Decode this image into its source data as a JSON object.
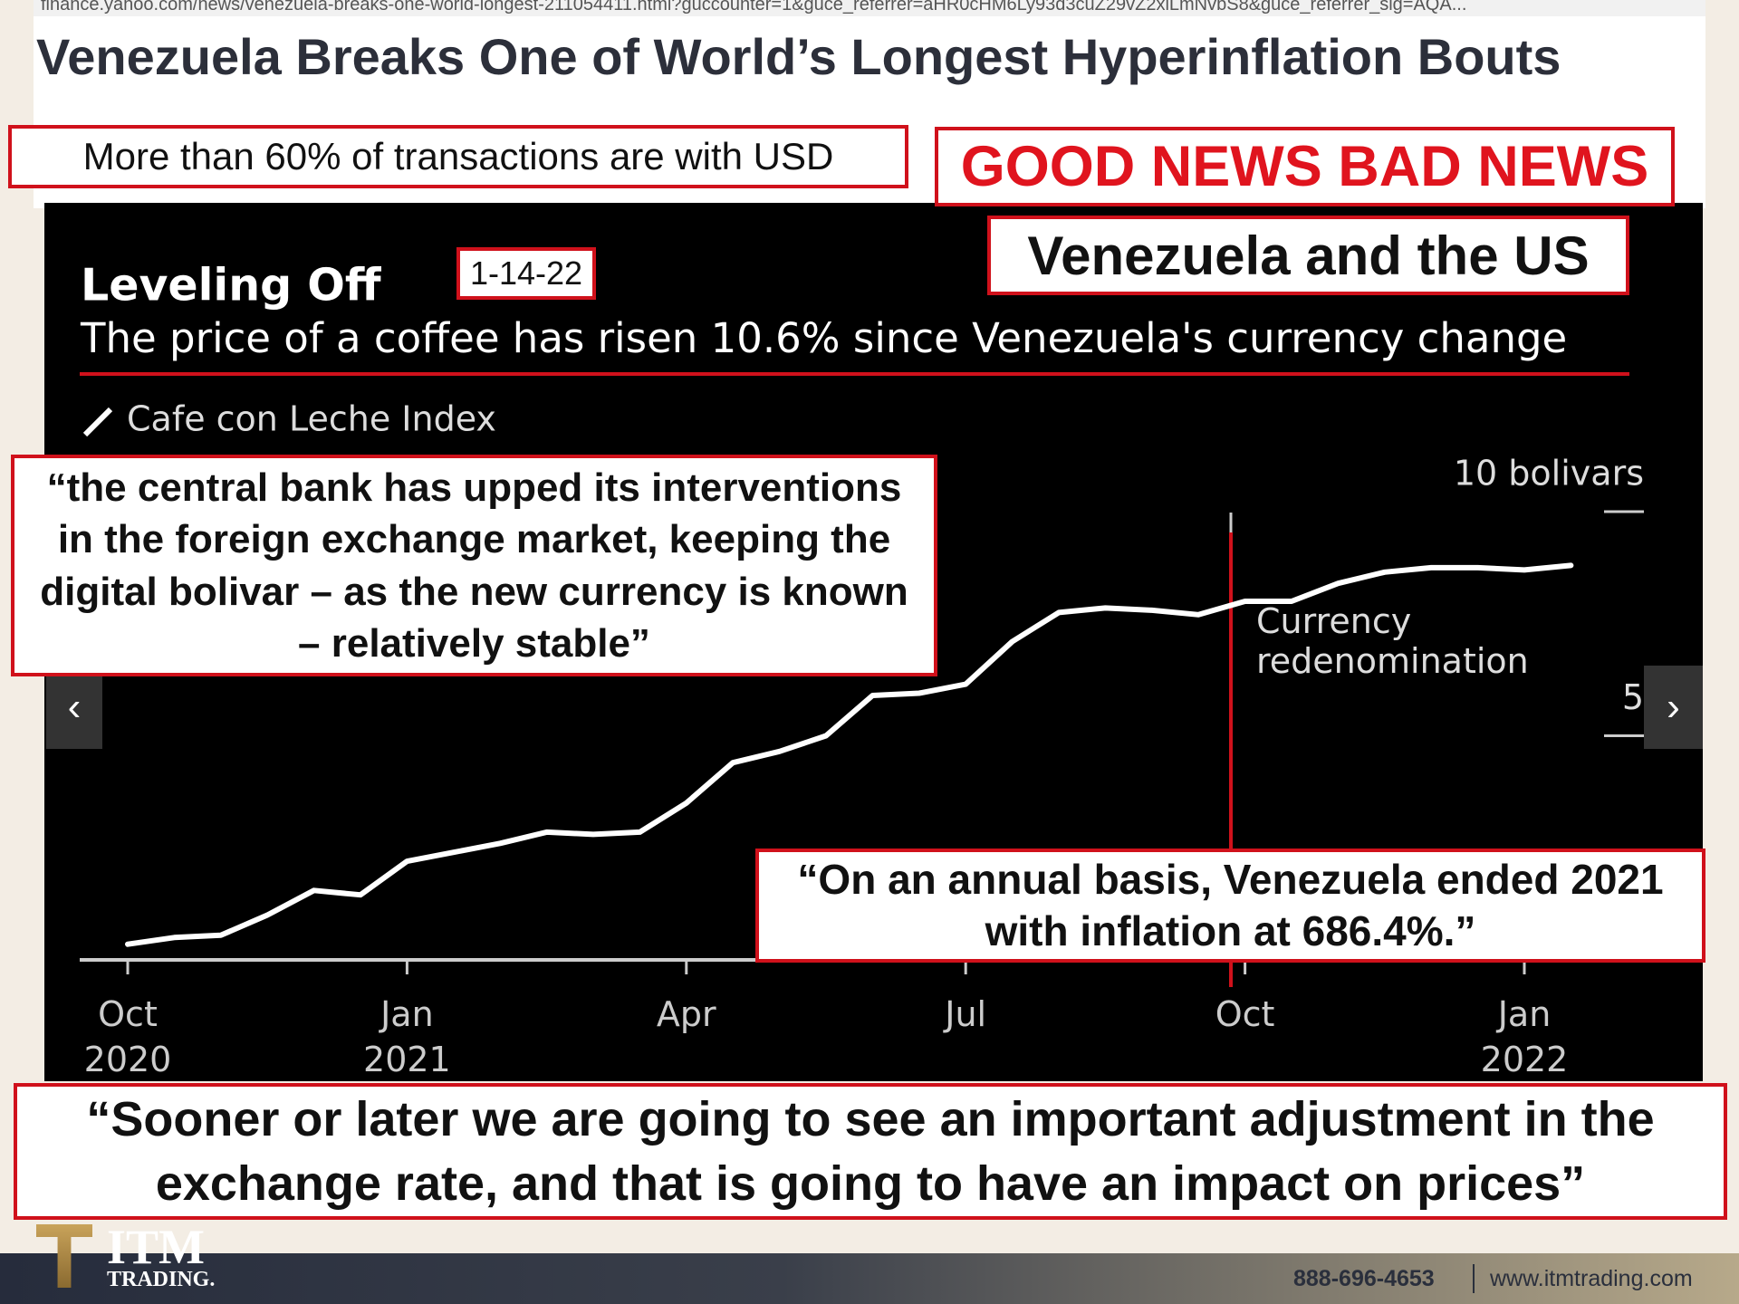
{
  "browser": {
    "url": "finance.yahoo.com/news/venezuela-breaks-one-world-longest-211054411.html?guccounter=1&guce_referrer=aHR0cHM6Ly93d3cuZ29vZ2xlLmNvbS8&guce_referrer_sig=AQA..."
  },
  "headline": "Venezuela Breaks One of World’s Longest Hyperinflation Bouts",
  "callouts": {
    "usd": "More than 60% of transactions are with USD",
    "good_bad": "GOOD NEWS BAD NEWS",
    "topic": "Venezuela and the US",
    "date": "1-14-22",
    "central_bank": "“the central bank has upped its interventions in the foreign exchange market, keeping the digital bolivar – as the new currency is known – relatively stable”",
    "annual": "“On an annual basis, Venezuela ended 2021 with inflation at 686.4%.”",
    "adjustment": "“Sooner or later we are going to see an important adjustment in the exchange rate, and that is going to have an impact on prices”"
  },
  "chart_data": {
    "type": "line",
    "title": "Leveling Off",
    "subtitle": "The price of a coffee has risen 10.6% since Venezuela's currency change",
    "legend": "Cafe con Leche Index",
    "color": "#ffffff",
    "categories": [
      "Oct\n2020",
      null,
      null,
      null,
      null,
      null,
      "Jan\n2021",
      null,
      null,
      null,
      null,
      null,
      "Apr",
      null,
      null,
      null,
      null,
      null,
      "Jul",
      null,
      null,
      null,
      null,
      null,
      "Oct",
      null,
      null,
      null,
      null,
      null,
      "Jan\n2022",
      null
    ],
    "values": [
      0.35,
      0.5,
      0.55,
      1.0,
      1.55,
      1.45,
      2.2,
      2.4,
      2.6,
      2.85,
      2.8,
      2.85,
      3.5,
      4.4,
      4.65,
      5.0,
      5.9,
      5.95,
      6.15,
      7.1,
      7.75,
      7.85,
      7.8,
      7.7,
      8.0,
      8.0,
      8.4,
      8.65,
      8.75,
      8.75,
      8.7,
      8.8
    ],
    "ylim": [
      0,
      11
    ],
    "yticks": [
      {
        "value": 10,
        "label": "10 bolivars"
      },
      5
    ],
    "annotation": "Currency\nredenomination"
  },
  "footer": {
    "brand": "ITM",
    "brand_sub": "TRADING.",
    "phone": "888-696-4653",
    "site": "www.itmtrading.com"
  }
}
